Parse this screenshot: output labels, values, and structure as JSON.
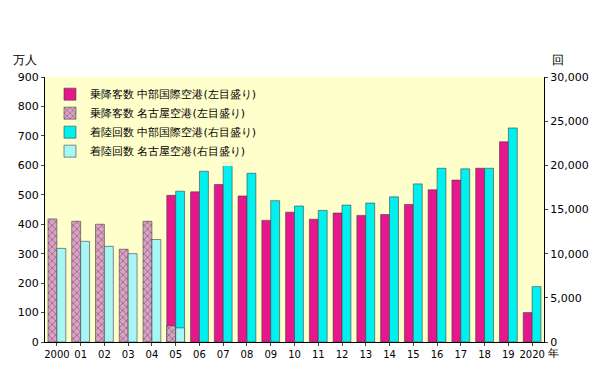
{
  "chart_data": {
    "type": "bar",
    "xlabel": "年",
    "ylabel": "万人",
    "y2label": "回",
    "categories": [
      "2000",
      "01",
      "02",
      "03",
      "04",
      "05",
      "06",
      "07",
      "08",
      "09",
      "10",
      "11",
      "12",
      "13",
      "14",
      "15",
      "16",
      "17",
      "18",
      "19",
      "2020"
    ],
    "series": [
      {
        "name": "乗降客数 中部国際空港(左目盛り)",
        "color": "#e6178c",
        "axis": "y",
        "values": [
          null,
          null,
          null,
          null,
          null,
          498,
          510,
          535,
          496,
          413,
          441,
          417,
          438,
          430,
          433,
          467,
          517,
          550,
          590,
          680,
          100
        ]
      },
      {
        "name": "乗降客数 名古屋空港(左目盛り)",
        "color": "#d9a3c4",
        "axis": "y",
        "marker": "hatched",
        "values": [
          418,
          410,
          400,
          315,
          410,
          55,
          null,
          null,
          null,
          null,
          null,
          null,
          null,
          null,
          null,
          null,
          null,
          null,
          null,
          null,
          null
        ]
      },
      {
        "name": "着陸回数 中部国際空港(右目盛り)",
        "color": "#00f0f0",
        "axis": "y2",
        "values": [
          null,
          null,
          null,
          null,
          null,
          17070,
          19330,
          20330,
          19100,
          16000,
          15400,
          14900,
          15500,
          15730,
          16430,
          17900,
          19670,
          19600,
          19670,
          24230,
          6270
        ]
      },
      {
        "name": "着陸回数 名古屋空港(右目盛り)",
        "color": "#a8f5f5",
        "axis": "y2",
        "values": [
          10600,
          11400,
          10830,
          10000,
          11600,
          1600,
          null,
          null,
          null,
          null,
          null,
          null,
          null,
          null,
          null,
          null,
          null,
          null,
          null,
          null,
          null
        ]
      }
    ],
    "ylim": [
      0,
      900
    ],
    "yticks": [
      0,
      100,
      200,
      300,
      400,
      500,
      600,
      700,
      800,
      900
    ],
    "y2lim": [
      0,
      30000
    ],
    "y2ticks": [
      0,
      {
        "value": 5000,
        "label": "5,000"
      },
      {
        "value": 10000,
        "label": "10,000"
      },
      {
        "value": 15000,
        "label": "15,000"
      },
      {
        "value": 20000,
        "label": "20,000"
      },
      {
        "value": 25000,
        "label": "25,000"
      },
      {
        "value": 30000,
        "label": "30,000"
      }
    ],
    "grid": false,
    "legend": "top-left"
  }
}
